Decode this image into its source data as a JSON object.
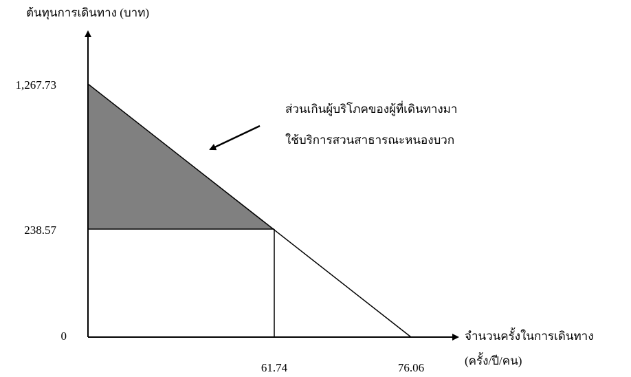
{
  "y_axis": {
    "label": "ต้นทุนการเดินทาง (บาท)",
    "ticks": [
      "1,267.73",
      "238.57",
      "0"
    ]
  },
  "x_axis": {
    "label": [
      "จำนวนครั้งในการเดินทาง",
      "(ครั้ง/ปี/คน)"
    ],
    "ticks": [
      "61.74",
      "76.06"
    ]
  },
  "annotation": [
    "ส่วนเกินผู้บริโภคของผู้ที่เดินทางมา",
    "ใช้บริการสวนสาธารณะหนองบวก"
  ]
}
